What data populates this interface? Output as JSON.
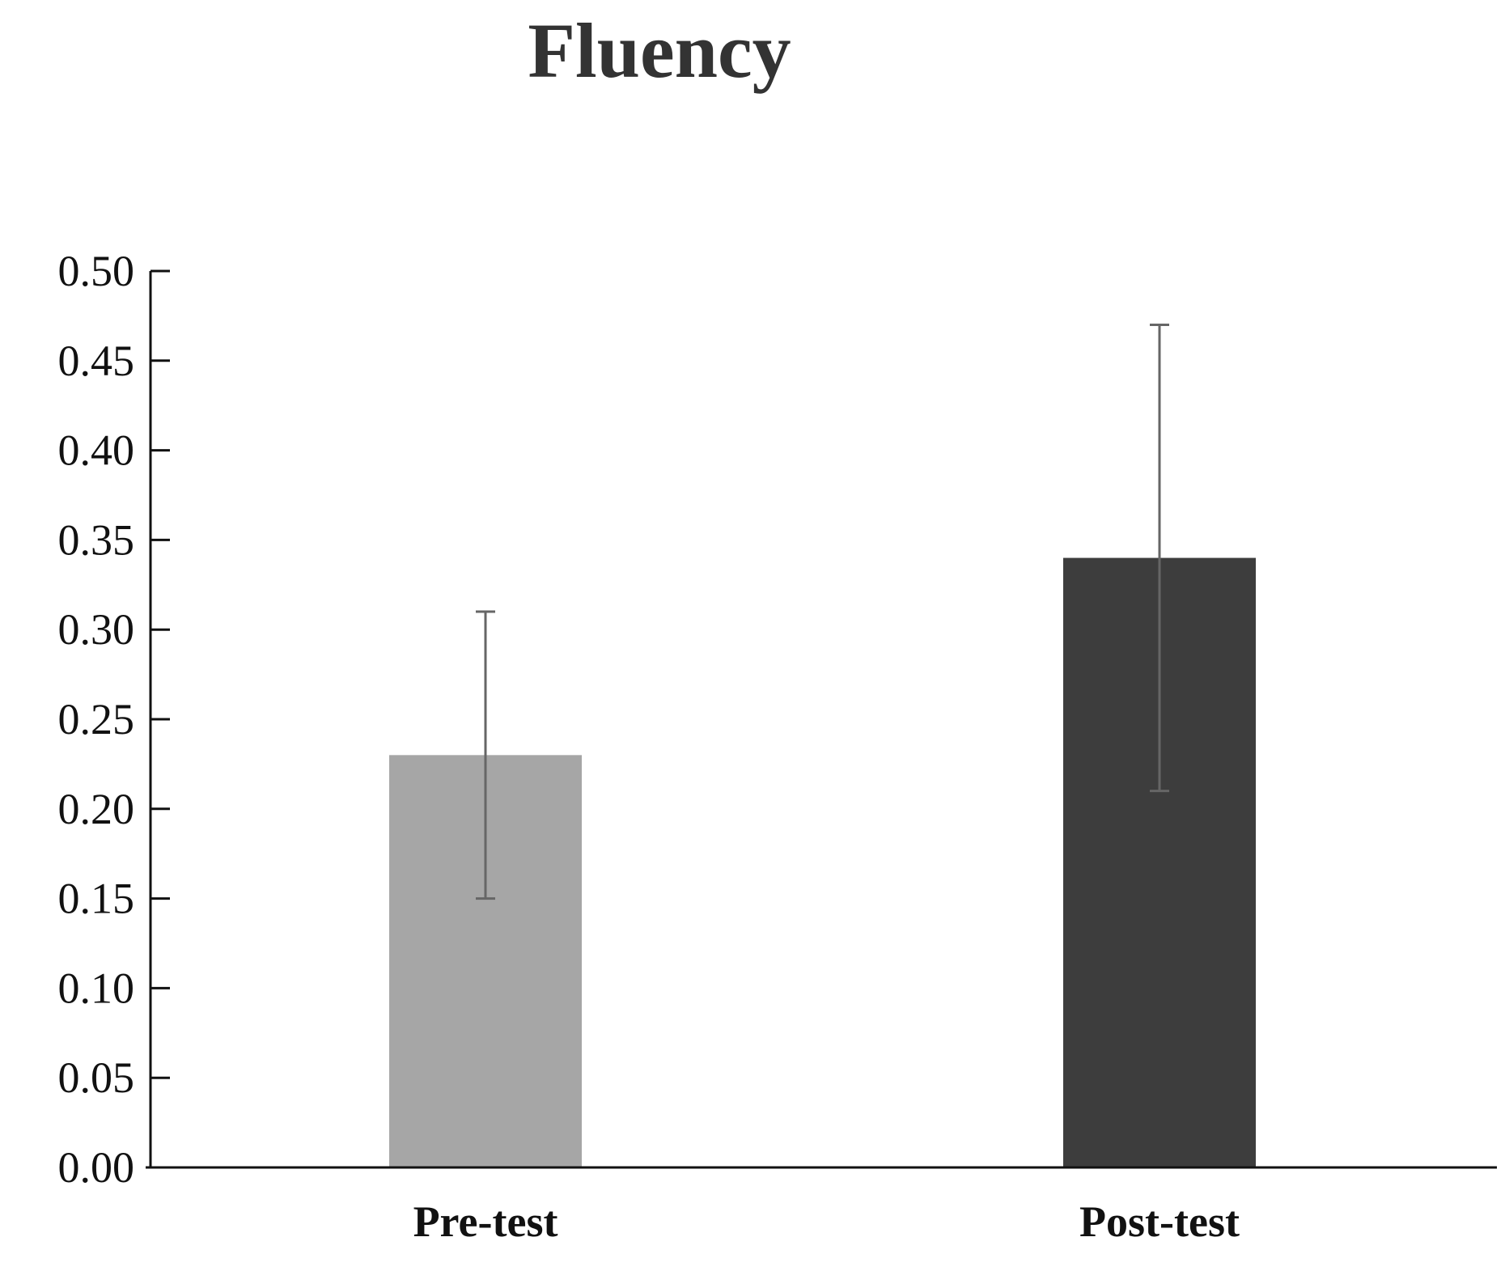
{
  "chart_data": {
    "type": "bar",
    "title": "Fluency",
    "xlabel": "",
    "ylabel": "",
    "categories": [
      "Pre-test",
      "Post-test"
    ],
    "values": [
      0.23,
      0.34
    ],
    "error_bars": [
      {
        "low": 0.15,
        "high": 0.31
      },
      {
        "low": 0.21,
        "high": 0.47
      }
    ],
    "ylim": [
      0,
      0.5
    ],
    "yticks": [
      "0.00",
      "0.05",
      "0.10",
      "0.15",
      "0.20",
      "0.25",
      "0.30",
      "0.35",
      "0.40",
      "0.45",
      "0.50"
    ],
    "bar_colors": [
      "#a6a6a6",
      "#3d3d3d"
    ],
    "error_bar_color": "#666666",
    "axis_color": "#111111",
    "grid": false,
    "legend": "none"
  }
}
